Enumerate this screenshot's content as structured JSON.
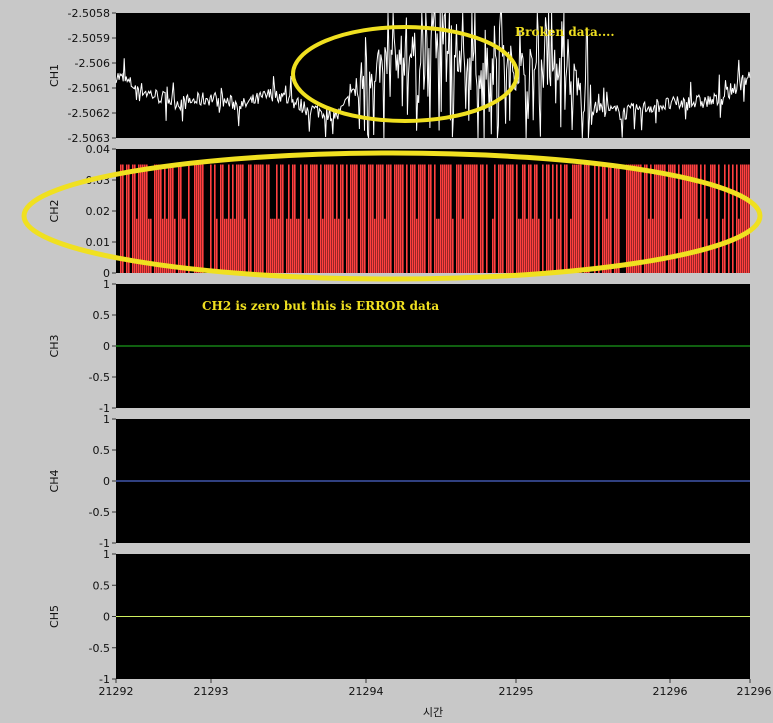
{
  "chart_data": [
    {
      "type": "line",
      "ylabel": "CH1",
      "ylim": [
        -2.5063,
        -2.5058
      ],
      "yticks": [
        "-2.5058",
        "-2.5059",
        "-2.506",
        "-2.5061",
        "-2.5062",
        "-2.5063"
      ],
      "xlim": [
        21292,
        21296
      ],
      "series": [
        {
          "color": "#ffffff",
          "x": [
            21292.0,
            21292.2,
            21292.4,
            21292.6,
            21292.8,
            21293.0,
            21293.2,
            21293.4,
            21293.5,
            21293.6,
            21293.8,
            21294.0,
            21294.2,
            21294.4,
            21294.6,
            21294.8,
            21295.0,
            21295.2,
            21295.4,
            21295.6,
            21295.8,
            21296.0
          ],
          "values": [
            -2.50605,
            -2.50612,
            -2.50616,
            -2.50614,
            -2.50617,
            -2.50612,
            -2.50618,
            -2.50621,
            -2.50612,
            -2.50603,
            -2.50597,
            -2.50596,
            -2.50603,
            -2.506,
            -2.50603,
            -2.506,
            -2.50618,
            -2.5062,
            -2.50617,
            -2.50616,
            -2.50615,
            -2.50605
          ]
        }
      ],
      "annotation": {
        "text": "Broken data....",
        "color": "#f0e020"
      }
    },
    {
      "type": "bar",
      "ylabel": "CH2",
      "ylim": [
        0,
        0.04
      ],
      "yticks": [
        "0.04",
        "0.03",
        "0.02",
        "0.01",
        "0"
      ],
      "xlim": [
        21292,
        21296
      ],
      "series": [
        {
          "color": "#ff4040",
          "values": [
            0.035,
            0.0175
          ]
        }
      ]
    },
    {
      "type": "line",
      "ylabel": "CH3",
      "ylim": [
        -1,
        1
      ],
      "yticks": [
        "1",
        "0.5",
        "0",
        "-0.5",
        "-1"
      ],
      "xlim": [
        21292,
        21296
      ],
      "series": [
        {
          "color": "#20c020",
          "x": [
            21292,
            21296
          ],
          "values": [
            0,
            0
          ]
        }
      ],
      "annotation": {
        "text": "CH2 is zero but this is ERROR data",
        "color": "#f0e020"
      }
    },
    {
      "type": "line",
      "ylabel": "CH4",
      "ylim": [
        -1,
        1
      ],
      "yticks": [
        "1",
        "0.5",
        "0",
        "-0.5",
        "-1"
      ],
      "xlim": [
        21292,
        21296
      ],
      "series": [
        {
          "color": "#6080ff",
          "x": [
            21292,
            21296
          ],
          "values": [
            0,
            0
          ]
        }
      ]
    },
    {
      "type": "line",
      "ylabel": "CH5",
      "ylim": [
        -1,
        1
      ],
      "yticks": [
        "1",
        "0.5",
        "0",
        "-0.5",
        "-1"
      ],
      "xlim": [
        21292,
        21296
      ],
      "xticks": [
        "21292",
        "21293",
        "21294",
        "21295",
        "21296",
        "21296"
      ],
      "xticks_values": [
        21292,
        21293,
        21294,
        21295,
        21296,
        21296
      ],
      "xlabel": "시간",
      "series": [
        {
          "color": "#d0f060",
          "x": [
            21292,
            21296
          ],
          "values": [
            0,
            0
          ]
        }
      ]
    }
  ],
  "colors": {
    "plot_bg": "#000000",
    "frame_bg": "#c8c8c8",
    "highlight": "#f0e020"
  }
}
